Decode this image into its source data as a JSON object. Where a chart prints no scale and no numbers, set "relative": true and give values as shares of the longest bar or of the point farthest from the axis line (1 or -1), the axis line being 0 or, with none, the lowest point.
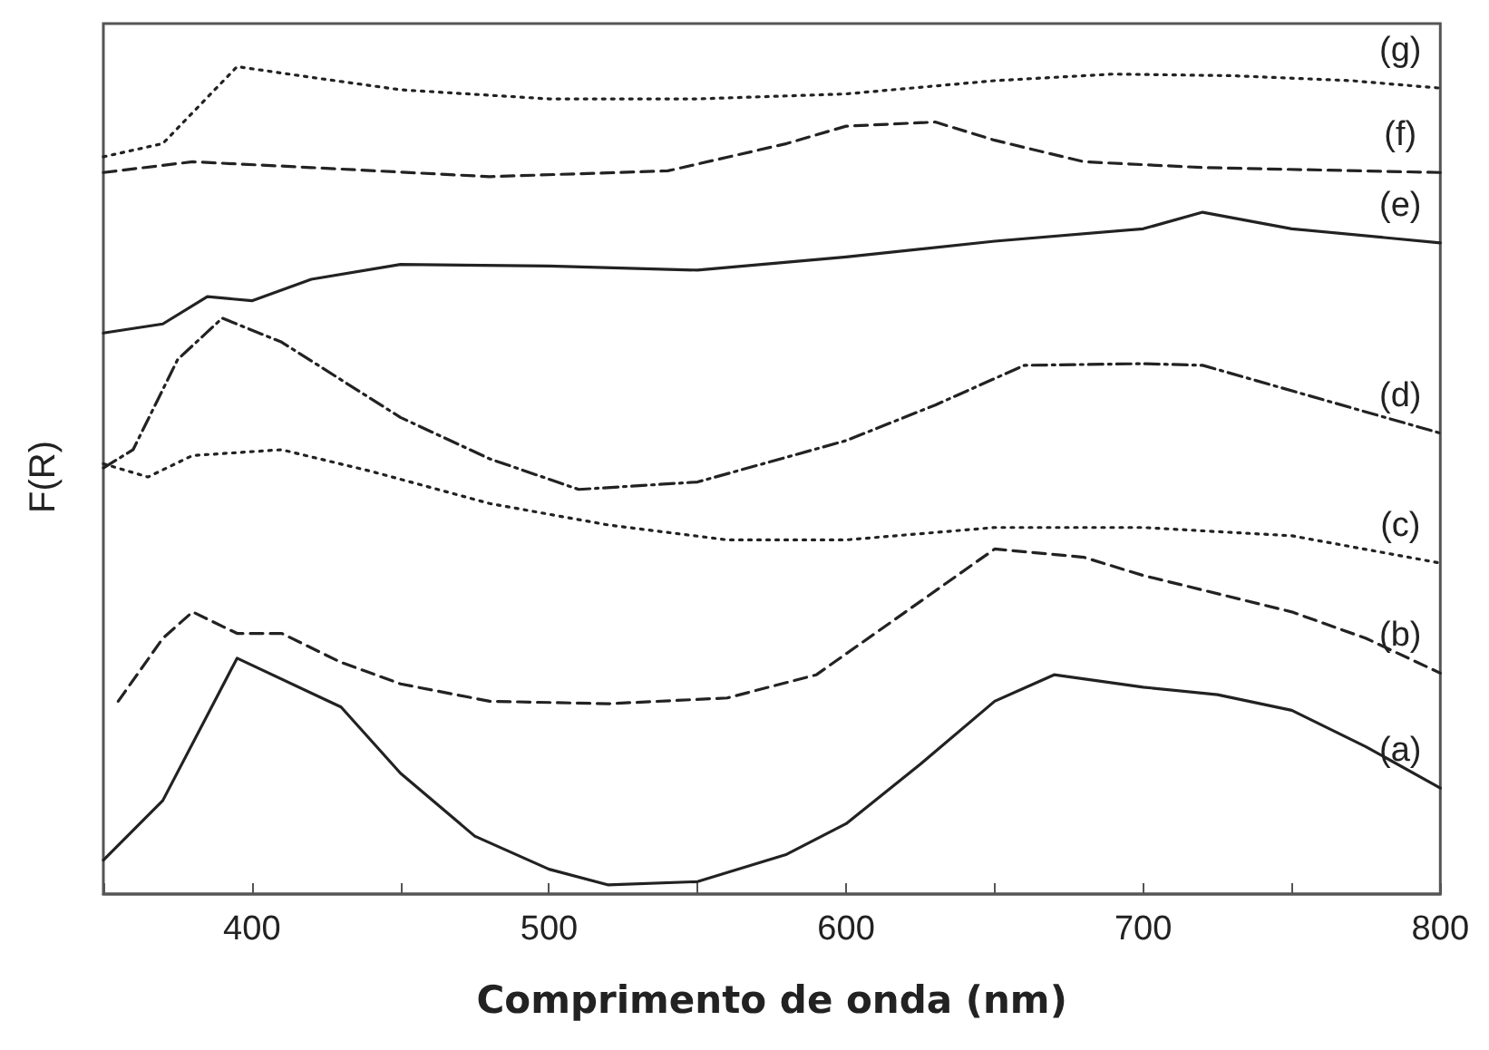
{
  "chart_data": {
    "type": "line",
    "xlabel": "Comprimento de onda (nm)",
    "ylabel": "F(R)",
    "relative": true,
    "xlim": [
      350,
      800
    ],
    "xticks": [
      {
        "value": 350,
        "label": null
      },
      400,
      {
        "value": 450,
        "label": null
      },
      500,
      {
        "value": 550,
        "label": null
      },
      600,
      {
        "value": 650,
        "label": null
      },
      700,
      {
        "value": 750,
        "label": null
      },
      800
    ],
    "grid": false,
    "legend": false,
    "series": [
      {
        "name": "(a)",
        "color": "#222222",
        "line_style": "solid",
        "x": [
          350,
          370,
          395,
          430,
          450,
          475,
          500,
          520,
          550,
          580,
          600,
          625,
          650,
          670,
          700,
          725,
          750,
          775,
          800
        ],
        "values": [
          0.041,
          0.113,
          0.285,
          0.226,
          0.146,
          0.07,
          0.03,
          0.011,
          0.015,
          0.048,
          0.085,
          0.157,
          0.233,
          0.265,
          0.25,
          0.241,
          0.222,
          0.178,
          0.128
        ]
      },
      {
        "name": "(b)",
        "color": "#222222",
        "line_style": "dashed",
        "x": [
          355,
          370,
          380,
          395,
          410,
          430,
          450,
          480,
          520,
          560,
          590,
          620,
          650,
          680,
          700,
          750,
          775,
          800
        ],
        "values": [
          0.233,
          0.309,
          0.341,
          0.315,
          0.315,
          0.28,
          0.254,
          0.233,
          0.23,
          0.237,
          0.265,
          0.341,
          0.417,
          0.407,
          0.385,
          0.341,
          0.309,
          0.267
        ]
      },
      {
        "name": "(c)",
        "color": "#222222",
        "line_style": "dotted",
        "x": [
          350,
          365,
          380,
          410,
          440,
          480,
          520,
          560,
          600,
          650,
          700,
          750,
          800
        ],
        "values": [
          0.52,
          0.504,
          0.53,
          0.537,
          0.511,
          0.472,
          0.446,
          0.428,
          0.428,
          0.443,
          0.443,
          0.433,
          0.4
        ]
      },
      {
        "name": "(d)",
        "color": "#222222",
        "line_style": "dashdot",
        "x": [
          350,
          360,
          375,
          390,
          410,
          450,
          480,
          510,
          550,
          600,
          630,
          660,
          700,
          720,
          760,
          800
        ],
        "values": [
          0.515,
          0.537,
          0.646,
          0.696,
          0.667,
          0.576,
          0.526,
          0.489,
          0.498,
          0.548,
          0.591,
          0.639,
          0.641,
          0.639,
          0.598,
          0.557
        ]
      },
      {
        "name": "(e)",
        "color": "#222222",
        "line_style": "solid",
        "x": [
          350,
          370,
          385,
          400,
          420,
          450,
          500,
          550,
          600,
          650,
          700,
          720,
          750,
          800
        ],
        "values": [
          0.678,
          0.689,
          0.722,
          0.717,
          0.743,
          0.761,
          0.759,
          0.754,
          0.77,
          0.789,
          0.804,
          0.824,
          0.804,
          0.787
        ]
      },
      {
        "name": "(f)",
        "color": "#222222",
        "line_style": "dashed",
        "x": [
          350,
          380,
          420,
          480,
          540,
          580,
          600,
          630,
          650,
          680,
          720,
          800
        ],
        "values": [
          0.872,
          0.885,
          0.878,
          0.867,
          0.874,
          0.907,
          0.928,
          0.933,
          0.911,
          0.885,
          0.878,
          0.872
        ]
      },
      {
        "name": "(g)",
        "color": "#222222",
        "line_style": "dotted",
        "x": [
          350,
          370,
          395,
          420,
          450,
          500,
          550,
          600,
          650,
          690,
          730,
          770,
          800
        ],
        "values": [
          0.891,
          0.907,
          1.0,
          0.987,
          0.972,
          0.961,
          0.961,
          0.967,
          0.983,
          0.991,
          0.989,
          0.983,
          0.974
        ]
      }
    ]
  }
}
